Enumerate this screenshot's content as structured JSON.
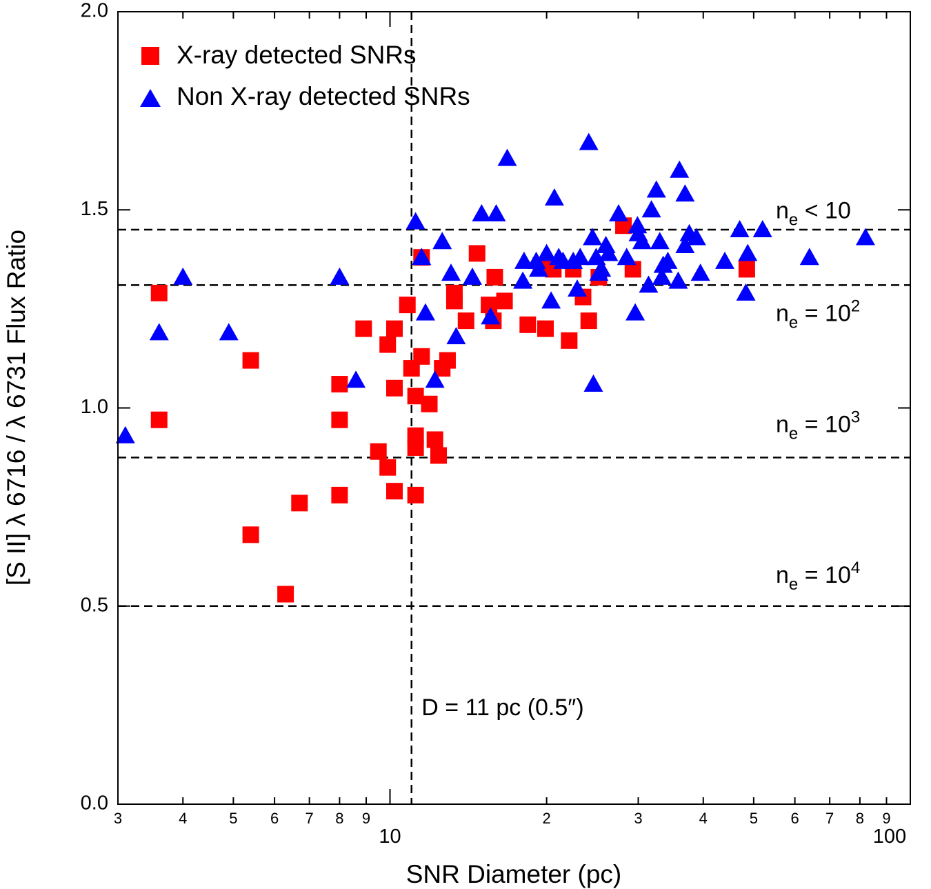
{
  "chart_data": {
    "type": "scatter",
    "xscale": "log",
    "xlim": [
      3,
      100
    ],
    "ylim": [
      0.0,
      2.0
    ],
    "xlabel": "SNR Diameter (pc)",
    "ylabel": "[S II] λ 6716 / λ 6731 Flux Ratio",
    "y_ticks": [
      "0.0",
      "0.5",
      "1.0",
      "1.5",
      "2.0"
    ],
    "y_tick_values": [
      0.0,
      0.5,
      1.0,
      1.5,
      2.0
    ],
    "x_major_ticks": [
      {
        "value": 10,
        "label": "10"
      },
      {
        "value": 100,
        "label": "100"
      }
    ],
    "x_minor_ticks": [
      {
        "value": 3,
        "label": "3"
      },
      {
        "value": 4,
        "label": "4"
      },
      {
        "value": 5,
        "label": "5"
      },
      {
        "value": 6,
        "label": "6"
      },
      {
        "value": 7,
        "label": "7"
      },
      {
        "value": 8,
        "label": "8"
      },
      {
        "value": 9,
        "label": "9"
      },
      {
        "value": 20,
        "label": "2"
      },
      {
        "value": 30,
        "label": "3"
      },
      {
        "value": 40,
        "label": "4"
      },
      {
        "value": 50,
        "label": "5"
      },
      {
        "value": 60,
        "label": "6"
      },
      {
        "value": 70,
        "label": "7"
      },
      {
        "value": 80,
        "label": "8"
      },
      {
        "value": 90,
        "label": "9"
      }
    ],
    "reference_lines": {
      "horizontal": [
        1.45,
        1.31,
        0.875,
        0.5
      ],
      "vertical": 11
    },
    "annotations": {
      "ne_lt_10": {
        "prefix": "n",
        "sub": "e",
        "text": " < 10",
        "y": 1.5
      },
      "ne_1e2": {
        "prefix": "n",
        "sub": "e",
        "text": " = 10",
        "sup": "2",
        "y": 1.24
      },
      "ne_1e3": {
        "prefix": "n",
        "sub": "e",
        "text": " = 10",
        "sup": "3",
        "y": 0.96
      },
      "ne_1e4": {
        "prefix": "n",
        "sub": "e",
        "text": " = 10",
        "sup": "4",
        "y": 0.58
      },
      "diameter": {
        "text": "D = 11 pc (0.5″)",
        "x": 11.5,
        "y": 0.245
      }
    },
    "legend": {
      "position": "top-left",
      "items": [
        {
          "label": "X-ray detected SNRs",
          "marker": "square",
          "color": "#ff0000"
        },
        {
          "label": "Non X-ray detected SNRs",
          "marker": "triangle",
          "color": "#0000ff"
        }
      ]
    },
    "series": [
      {
        "name": "X-ray detected SNRs",
        "marker": "square",
        "color": "#ff0000",
        "points": [
          [
            3.6,
            1.29
          ],
          [
            3.6,
            0.97
          ],
          [
            5.4,
            1.12
          ],
          [
            5.4,
            0.68
          ],
          [
            6.3,
            0.53
          ],
          [
            6.7,
            0.76
          ],
          [
            8.0,
            1.06
          ],
          [
            8.0,
            0.97
          ],
          [
            8.0,
            0.78
          ],
          [
            8.9,
            1.2
          ],
          [
            9.5,
            0.89
          ],
          [
            9.9,
            1.16
          ],
          [
            10.2,
            1.2
          ],
          [
            10.2,
            1.05
          ],
          [
            9.9,
            0.85
          ],
          [
            10.2,
            0.79
          ],
          [
            10.8,
            1.26
          ],
          [
            11.0,
            1.1
          ],
          [
            11.2,
            1.03
          ],
          [
            11.2,
            0.93
          ],
          [
            11.2,
            0.9
          ],
          [
            11.2,
            0.78
          ],
          [
            11.5,
            1.38
          ],
          [
            11.5,
            1.13
          ],
          [
            11.9,
            1.01
          ],
          [
            12.2,
            0.92
          ],
          [
            12.4,
            0.88
          ],
          [
            12.6,
            1.1
          ],
          [
            12.9,
            1.12
          ],
          [
            13.3,
            1.27
          ],
          [
            13.3,
            1.29
          ],
          [
            14.0,
            1.22
          ],
          [
            14.7,
            1.39
          ],
          [
            15.5,
            1.26
          ],
          [
            15.8,
            1.22
          ],
          [
            15.9,
            1.33
          ],
          [
            16.6,
            1.27
          ],
          [
            18.4,
            1.21
          ],
          [
            19.5,
            1.36
          ],
          [
            19.9,
            1.2
          ],
          [
            20.6,
            1.35
          ],
          [
            22.1,
            1.17
          ],
          [
            22.5,
            1.35
          ],
          [
            23.5,
            1.28
          ],
          [
            24.1,
            1.22
          ],
          [
            25.2,
            1.33
          ],
          [
            28.1,
            1.46
          ],
          [
            29.3,
            1.35
          ],
          [
            48.5,
            1.35
          ]
        ]
      },
      {
        "name": "Non X-ray detected SNRs",
        "marker": "triangle",
        "color": "#0000ff",
        "points": [
          [
            3.1,
            0.93
          ],
          [
            3.6,
            1.19
          ],
          [
            4.0,
            1.33
          ],
          [
            4.9,
            1.19
          ],
          [
            8.0,
            1.33
          ],
          [
            8.6,
            1.07
          ],
          [
            11.2,
            1.47
          ],
          [
            11.5,
            1.38
          ],
          [
            11.7,
            1.24
          ],
          [
            12.2,
            1.07
          ],
          [
            12.6,
            1.42
          ],
          [
            13.1,
            1.34
          ],
          [
            13.4,
            1.18
          ],
          [
            14.4,
            1.33
          ],
          [
            15.0,
            1.49
          ],
          [
            15.6,
            1.23
          ],
          [
            16.0,
            1.49
          ],
          [
            16.8,
            1.63
          ],
          [
            18.0,
            1.32
          ],
          [
            18.1,
            1.37
          ],
          [
            19.1,
            1.37
          ],
          [
            19.3,
            1.35
          ],
          [
            20.0,
            1.39
          ],
          [
            20.4,
            1.27
          ],
          [
            20.7,
            1.53
          ],
          [
            21.1,
            1.38
          ],
          [
            21.5,
            1.37
          ],
          [
            22.5,
            1.37
          ],
          [
            22.9,
            1.3
          ],
          [
            23.2,
            1.38
          ],
          [
            24.1,
            1.67
          ],
          [
            24.5,
            1.43
          ],
          [
            24.6,
            1.06
          ],
          [
            24.9,
            1.38
          ],
          [
            25.2,
            1.34
          ],
          [
            25.5,
            1.35
          ],
          [
            26.0,
            1.41
          ],
          [
            26.3,
            1.39
          ],
          [
            27.5,
            1.49
          ],
          [
            28.5,
            1.38
          ],
          [
            29.6,
            1.24
          ],
          [
            29.9,
            1.46
          ],
          [
            30.0,
            1.44
          ],
          [
            30.5,
            1.42
          ],
          [
            31.4,
            1.31
          ],
          [
            31.8,
            1.5
          ],
          [
            32.5,
            1.55
          ],
          [
            33.0,
            1.42
          ],
          [
            33.3,
            1.33
          ],
          [
            33.5,
            1.36
          ],
          [
            34.2,
            1.37
          ],
          [
            35.8,
            1.32
          ],
          [
            36.0,
            1.6
          ],
          [
            36.9,
            1.41
          ],
          [
            36.9,
            1.54
          ],
          [
            37.6,
            1.44
          ],
          [
            38.8,
            1.43
          ],
          [
            39.5,
            1.34
          ],
          [
            44.0,
            1.37
          ],
          [
            47.0,
            1.45
          ],
          [
            48.3,
            1.29
          ],
          [
            48.7,
            1.39
          ],
          [
            52.0,
            1.45
          ],
          [
            64.0,
            1.38
          ],
          [
            82.0,
            1.43
          ]
        ]
      }
    ]
  }
}
